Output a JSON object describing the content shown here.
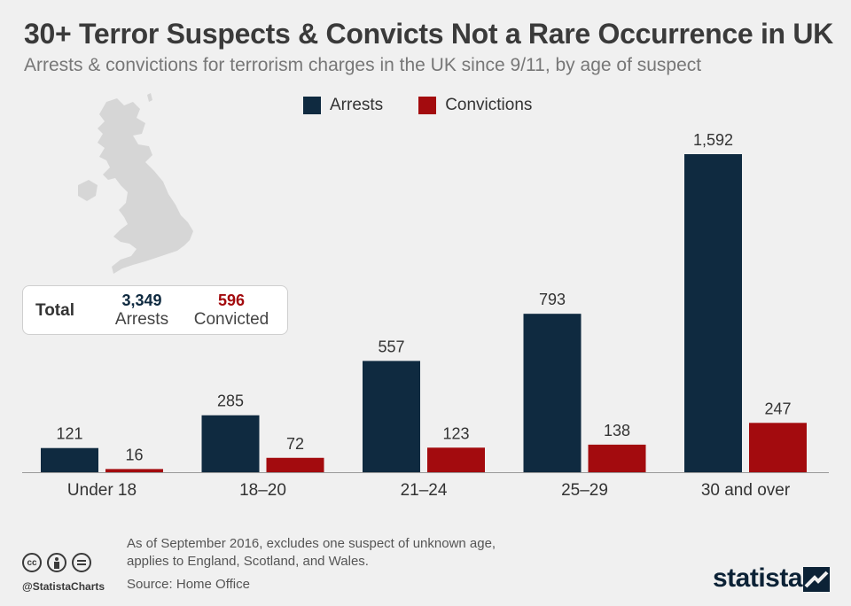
{
  "title": "30+ Terror Suspects & Convicts Not a Rare Occurrence in UK",
  "subtitle": "Arrests & convictions for terrorism charges in the UK since 9/11, by age of suspect",
  "legend": [
    {
      "label": "Arrests",
      "color": "#0f2a40"
    },
    {
      "label": "Convictions",
      "color": "#a30b0e"
    }
  ],
  "total_box": {
    "label": "Total",
    "arrests_value": "3,349",
    "arrests_label": "Arrests",
    "convicted_value": "596",
    "convicted_label": "Convicted"
  },
  "chart_data": {
    "type": "bar",
    "categories": [
      "Under 18",
      "18–20",
      "21–24",
      "25–29",
      "30 and over"
    ],
    "series": [
      {
        "name": "Arrests",
        "color": "#0f2a40",
        "values": [
          121,
          285,
          557,
          793,
          1592
        ],
        "labels": [
          "121",
          "285",
          "557",
          "793",
          "1,592"
        ]
      },
      {
        "name": "Convictions",
        "color": "#a30b0e",
        "values": [
          16,
          72,
          123,
          138,
          247
        ],
        "labels": [
          "16",
          "72",
          "123",
          "138",
          "247"
        ]
      }
    ],
    "ylim": [
      0,
      1592
    ]
  },
  "footer": {
    "note_line1": "As of September 2016, excludes one suspect of unknown age,",
    "note_line2": "applies to England, Scotland, and Wales.",
    "source": "Source: Home Office",
    "handle": "@StatistaCharts",
    "brand": "statista"
  }
}
